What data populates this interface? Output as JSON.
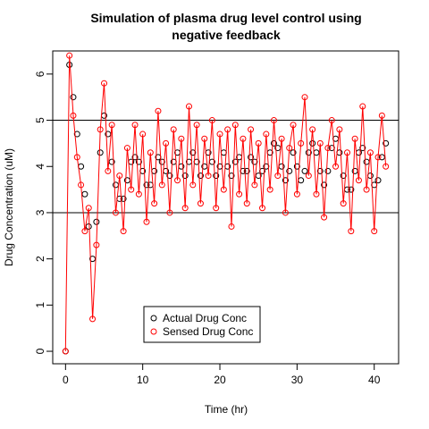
{
  "chart_data": {
    "type": "scatter",
    "title": "Simulation of plasma drug level control using",
    "title_line2": "negative feedback",
    "x_label": "Time (hr)",
    "y_label": "Drug Concentration (uM)",
    "xlim": [
      -1.66,
      43.16
    ],
    "ylim": [
      -0.27,
      6.5
    ],
    "xticks": [
      0,
      10,
      20,
      30,
      40
    ],
    "yticks": [
      0,
      1,
      2,
      3,
      4,
      5,
      6
    ],
    "hlines": [
      3,
      5
    ],
    "x": [
      0,
      0.5,
      1,
      1.5,
      2,
      2.5,
      3,
      3.5,
      4,
      4.5,
      5,
      5.5,
      6,
      6.5,
      7,
      7.5,
      8,
      8.5,
      9,
      9.5,
      10,
      10.5,
      11,
      11.5,
      12,
      12.5,
      13,
      13.5,
      14,
      14.5,
      15,
      15.5,
      16,
      16.5,
      17,
      17.5,
      18,
      18.5,
      19,
      19.5,
      20,
      20.5,
      21,
      21.5,
      22,
      22.5,
      23,
      23.5,
      24,
      24.5,
      25,
      25.5,
      26,
      26.5,
      27,
      27.5,
      28,
      28.5,
      29,
      29.5,
      30,
      30.5,
      31,
      31.5,
      32,
      32.5,
      33,
      33.5,
      34,
      34.5,
      35,
      35.5,
      36,
      36.5,
      37,
      37.5,
      38,
      38.5,
      39,
      39.5,
      40,
      40.5,
      41,
      41.5
    ],
    "series": [
      {
        "name": "Actual Drug Conc",
        "color": "#000000",
        "line": false,
        "values": [
          0,
          6.2,
          5.5,
          4.7,
          4.0,
          3.4,
          2.7,
          2.0,
          2.8,
          4.3,
          5.1,
          4.7,
          4.1,
          3.6,
          3.3,
          3.3,
          3.7,
          4.1,
          4.2,
          4.1,
          3.9,
          3.6,
          3.6,
          3.9,
          4.2,
          4.1,
          3.9,
          3.8,
          4.1,
          4.3,
          4.0,
          3.8,
          4.1,
          4.3,
          4.1,
          3.8,
          4.0,
          4.3,
          4.1,
          3.8,
          4.0,
          4.3,
          4.0,
          3.8,
          4.1,
          4.2,
          3.9,
          3.9,
          4.2,
          4.1,
          3.8,
          3.9,
          4.0,
          4.3,
          4.5,
          4.4,
          4.0,
          3.7,
          3.9,
          4.3,
          4.0,
          3.7,
          3.9,
          4.3,
          4.5,
          4.3,
          3.9,
          3.6,
          3.9,
          4.4,
          4.6,
          4.3,
          3.8,
          3.5,
          3.5,
          3.9,
          4.3,
          4.4,
          4.1,
          3.8,
          3.6,
          3.7,
          4.2,
          4.5
        ]
      },
      {
        "name": "Sensed Drug Conc",
        "color": "#ff0000",
        "line": true,
        "values": [
          0,
          6.4,
          5.1,
          4.2,
          3.6,
          2.6,
          3.1,
          0.7,
          2.3,
          4.8,
          5.8,
          3.9,
          4.9,
          3.0,
          3.8,
          2.6,
          4.4,
          3.5,
          4.9,
          3.4,
          4.7,
          2.8,
          4.3,
          3.2,
          5.2,
          3.6,
          4.5,
          3.0,
          4.8,
          3.7,
          4.6,
          3.1,
          5.3,
          3.6,
          4.9,
          3.2,
          4.6,
          3.8,
          5.0,
          3.1,
          4.7,
          3.5,
          4.8,
          2.7,
          4.9,
          3.4,
          4.6,
          3.2,
          4.8,
          3.6,
          4.5,
          3.1,
          4.7,
          3.5,
          5.0,
          3.8,
          4.6,
          3.0,
          4.4,
          4.9,
          3.4,
          4.5,
          5.5,
          3.8,
          4.8,
          3.4,
          4.5,
          2.9,
          4.4,
          5.0,
          4.0,
          4.8,
          3.2,
          4.3,
          2.6,
          4.6,
          3.7,
          5.3,
          3.5,
          4.3,
          2.6,
          4.2,
          5.1,
          4.0
        ]
      }
    ]
  }
}
